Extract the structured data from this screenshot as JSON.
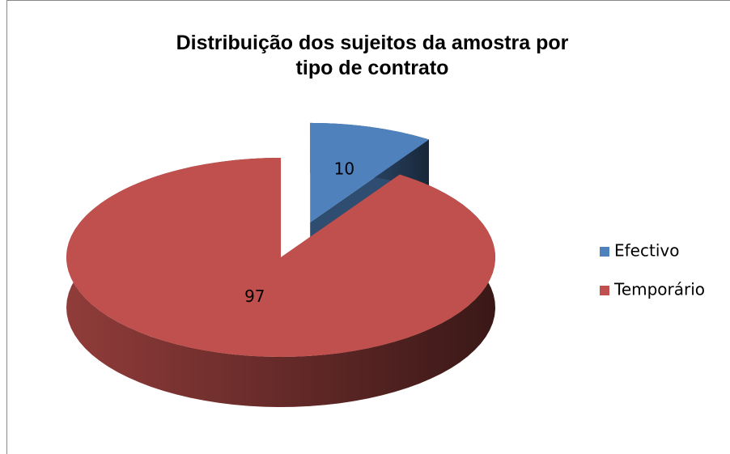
{
  "chart_data": {
    "type": "pie",
    "title": "Distribuição dos sujeitos da amostra por tipo de contrato",
    "categories": [
      "Efectivo",
      "Temporário"
    ],
    "values": [
      10,
      97
    ],
    "colors": [
      "#4f81bd",
      "#c0504d"
    ],
    "legend": "right",
    "three_d": true
  }
}
